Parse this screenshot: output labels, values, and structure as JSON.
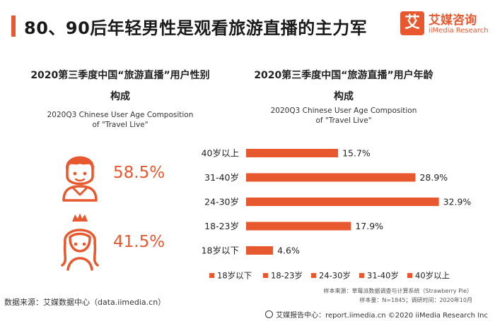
{
  "header": {
    "title": "80、90后年轻男性是观看旅游直播的主力军",
    "logo_mark": "艾",
    "logo_cn": "艾媒咨询",
    "logo_en": "iiMedia Research"
  },
  "left_panel": {
    "title_line1": "2020第三季度中国“旅游直播”用户性别",
    "title_line2": "构成",
    "subtitle_line1": "2020Q3 Chinese User Age Composition",
    "subtitle_line2": "of \"Travel Live\"",
    "male_pct": "58.5%",
    "female_pct": "41.5%"
  },
  "right_panel": {
    "title_line1": "2020第三季度中国“旅游直播”用户年龄",
    "title_line2": "构成",
    "subtitle_line1": "2020Q3 Chinese User Age Composition",
    "subtitle_line2": "of \"Travel Live\""
  },
  "chart_data": {
    "type": "bar",
    "orientation": "horizontal",
    "categories": [
      "40岁以上",
      "31-40岁",
      "24-30岁",
      "18-23岁",
      "18岁以下"
    ],
    "values": [
      15.7,
      28.9,
      32.9,
      17.9,
      4.6
    ],
    "value_labels": [
      "15.7%",
      "28.9%",
      "32.9%",
      "17.9%",
      "4.6%"
    ],
    "legend": [
      "18岁以下",
      "18-23岁",
      "24-30岁",
      "31-40岁",
      "40岁以上"
    ],
    "legend_position": "bottom",
    "xlim": [
      0,
      35
    ],
    "grid": false,
    "color": "#e8582f"
  },
  "notes": {
    "sample_source": "样本来源：草莓派数据调查与计算系统（Strawberry Pie）",
    "sample_size": "样本量：N=1845；调研时间：2020年10月"
  },
  "footer": {
    "data_source": "数据来源：艾媒数据中心（data.iimedia.cn）",
    "report_center": "艾媒报告中心：report.iimedia.cn  ©2020  iiMedia Research  Inc"
  },
  "colors": {
    "accent": "#e8582f"
  }
}
